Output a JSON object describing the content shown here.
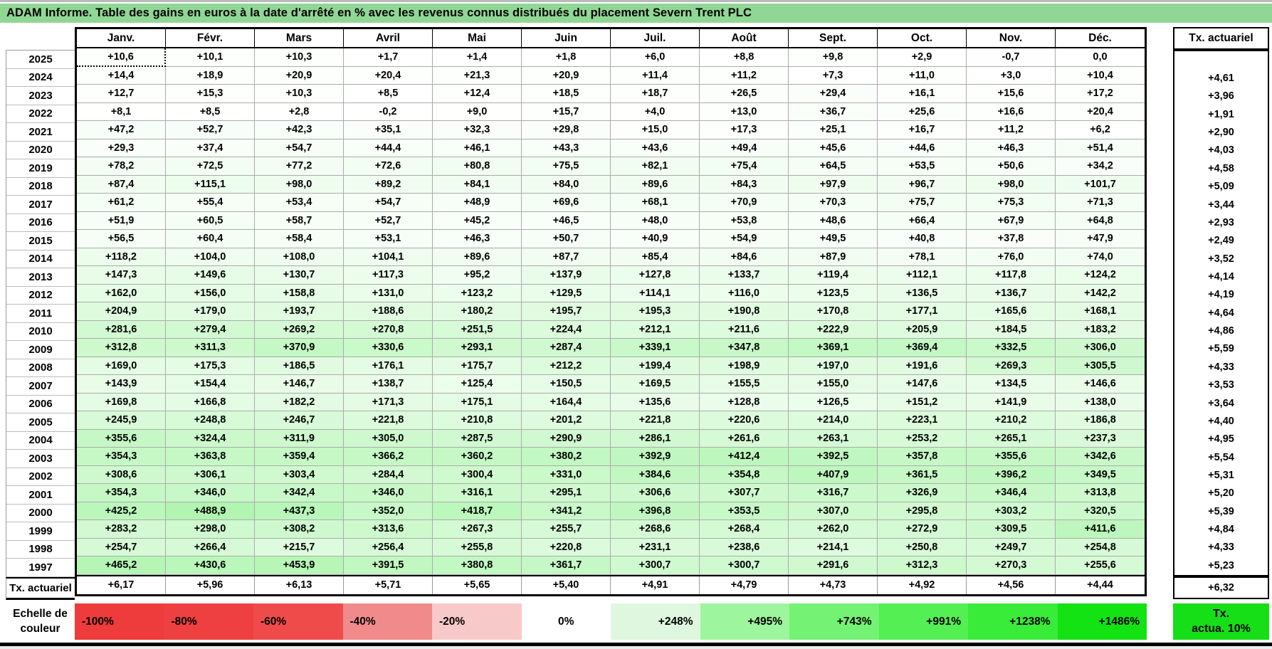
{
  "title": "ADAM Informe. Table des gains en euros à la date d'arrêté en % avec les revenus connus distribués du placement Severn Trent PLC",
  "columns": {
    "months": [
      "Janv.",
      "Févr.",
      "Mars",
      "Avril",
      "Mai",
      "Juin",
      "Juil.",
      "Août",
      "Sept.",
      "Oct.",
      "Nov.",
      "Déc."
    ],
    "tx_header": "Tx. actuariel"
  },
  "table": {
    "selected_cell": {
      "row_index": 0,
      "col_index": 0
    },
    "rows": [
      {
        "year": "2025",
        "values": [
          "+10,6",
          "+10,1",
          "+10,3",
          "+1,7",
          "+1,4",
          "+1,8",
          "+6,0",
          "+8,8",
          "+9,8",
          "+2,9",
          "-0,7",
          "0,0"
        ],
        "tx": ""
      },
      {
        "year": "2024",
        "values": [
          "+14,4",
          "+18,9",
          "+20,9",
          "+20,4",
          "+21,3",
          "+20,9",
          "+11,4",
          "+11,2",
          "+7,3",
          "+11,0",
          "+3,0",
          "+10,4"
        ],
        "tx": "+4,61"
      },
      {
        "year": "2023",
        "values": [
          "+12,7",
          "+15,3",
          "+10,3",
          "+8,5",
          "+12,4",
          "+18,5",
          "+18,7",
          "+26,5",
          "+29,4",
          "+16,1",
          "+15,6",
          "+17,2"
        ],
        "tx": "+3,96"
      },
      {
        "year": "2022",
        "values": [
          "+8,1",
          "+8,5",
          "+2,8",
          "-0,2",
          "+9,0",
          "+15,7",
          "+4,0",
          "+13,0",
          "+36,7",
          "+25,6",
          "+16,6",
          "+20,4"
        ],
        "tx": "+1,91"
      },
      {
        "year": "2021",
        "values": [
          "+47,2",
          "+52,7",
          "+42,3",
          "+35,1",
          "+32,3",
          "+29,8",
          "+15,0",
          "+17,3",
          "+25,1",
          "+16,7",
          "+11,2",
          "+6,2"
        ],
        "tx": "+2,90"
      },
      {
        "year": "2020",
        "values": [
          "+29,3",
          "+37,4",
          "+54,7",
          "+44,4",
          "+46,1",
          "+43,3",
          "+43,6",
          "+49,4",
          "+45,6",
          "+44,6",
          "+46,3",
          "+51,4"
        ],
        "tx": "+4,03"
      },
      {
        "year": "2019",
        "values": [
          "+78,2",
          "+72,5",
          "+77,2",
          "+72,6",
          "+80,8",
          "+75,5",
          "+82,1",
          "+75,4",
          "+64,5",
          "+53,5",
          "+50,6",
          "+34,2"
        ],
        "tx": "+4,58"
      },
      {
        "year": "2018",
        "values": [
          "+87,4",
          "+115,1",
          "+98,0",
          "+89,2",
          "+84,1",
          "+84,0",
          "+89,6",
          "+84,3",
          "+97,9",
          "+96,7",
          "+98,0",
          "+101,7"
        ],
        "tx": "+5,09"
      },
      {
        "year": "2017",
        "values": [
          "+61,2",
          "+55,4",
          "+53,4",
          "+54,7",
          "+48,9",
          "+69,6",
          "+68,1",
          "+70,9",
          "+70,3",
          "+75,7",
          "+75,3",
          "+71,3"
        ],
        "tx": "+3,44"
      },
      {
        "year": "2016",
        "values": [
          "+51,9",
          "+60,5",
          "+58,7",
          "+52,7",
          "+45,2",
          "+46,5",
          "+48,0",
          "+53,8",
          "+48,6",
          "+66,4",
          "+67,9",
          "+64,8"
        ],
        "tx": "+2,93"
      },
      {
        "year": "2015",
        "values": [
          "+56,5",
          "+60,4",
          "+58,4",
          "+53,1",
          "+46,3",
          "+50,7",
          "+40,9",
          "+54,9",
          "+49,5",
          "+40,8",
          "+37,8",
          "+47,9"
        ],
        "tx": "+2,49"
      },
      {
        "year": "2014",
        "values": [
          "+118,2",
          "+104,0",
          "+108,0",
          "+104,1",
          "+89,6",
          "+87,7",
          "+85,4",
          "+84,6",
          "+87,9",
          "+78,1",
          "+76,0",
          "+74,0"
        ],
        "tx": "+3,52"
      },
      {
        "year": "2013",
        "values": [
          "+147,3",
          "+149,6",
          "+130,7",
          "+117,3",
          "+95,2",
          "+137,9",
          "+127,8",
          "+133,7",
          "+119,4",
          "+112,1",
          "+117,8",
          "+124,2"
        ],
        "tx": "+4,14"
      },
      {
        "year": "2012",
        "values": [
          "+162,0",
          "+156,0",
          "+158,8",
          "+131,0",
          "+123,2",
          "+129,5",
          "+114,1",
          "+116,0",
          "+123,5",
          "+136,5",
          "+136,7",
          "+142,2"
        ],
        "tx": "+4,19"
      },
      {
        "year": "2011",
        "values": [
          "+204,9",
          "+179,0",
          "+193,7",
          "+188,6",
          "+180,2",
          "+195,7",
          "+195,3",
          "+190,8",
          "+170,8",
          "+177,1",
          "+165,6",
          "+168,1"
        ],
        "tx": "+4,64"
      },
      {
        "year": "2010",
        "values": [
          "+281,6",
          "+279,4",
          "+269,2",
          "+270,8",
          "+251,5",
          "+224,4",
          "+212,1",
          "+211,6",
          "+222,9",
          "+205,9",
          "+184,5",
          "+183,2"
        ],
        "tx": "+4,86"
      },
      {
        "year": "2009",
        "values": [
          "+312,8",
          "+311,3",
          "+370,9",
          "+330,6",
          "+293,1",
          "+287,4",
          "+339,1",
          "+347,8",
          "+369,1",
          "+369,4",
          "+332,5",
          "+306,0"
        ],
        "tx": "+5,59"
      },
      {
        "year": "2008",
        "values": [
          "+169,0",
          "+175,3",
          "+186,5",
          "+176,1",
          "+175,7",
          "+212,2",
          "+199,4",
          "+198,9",
          "+197,0",
          "+191,6",
          "+269,3",
          "+305,5"
        ],
        "tx": "+4,33"
      },
      {
        "year": "2007",
        "values": [
          "+143,9",
          "+154,4",
          "+146,7",
          "+138,7",
          "+125,4",
          "+150,5",
          "+169,5",
          "+155,5",
          "+155,0",
          "+147,6",
          "+134,5",
          "+146,6"
        ],
        "tx": "+3,53"
      },
      {
        "year": "2006",
        "values": [
          "+169,8",
          "+166,8",
          "+182,2",
          "+171,3",
          "+175,1",
          "+164,4",
          "+135,6",
          "+128,8",
          "+126,5",
          "+151,2",
          "+141,9",
          "+138,0"
        ],
        "tx": "+3,64"
      },
      {
        "year": "2005",
        "values": [
          "+245,9",
          "+248,8",
          "+246,7",
          "+221,8",
          "+210,8",
          "+201,2",
          "+221,8",
          "+220,6",
          "+214,0",
          "+223,1",
          "+210,2",
          "+186,8"
        ],
        "tx": "+4,40"
      },
      {
        "year": "2004",
        "values": [
          "+355,6",
          "+324,4",
          "+311,9",
          "+305,0",
          "+287,5",
          "+290,9",
          "+286,1",
          "+261,6",
          "+263,1",
          "+253,2",
          "+265,1",
          "+237,3"
        ],
        "tx": "+4,95"
      },
      {
        "year": "2003",
        "values": [
          "+354,3",
          "+363,8",
          "+359,4",
          "+366,2",
          "+360,2",
          "+380,2",
          "+392,9",
          "+412,4",
          "+392,5",
          "+357,8",
          "+355,6",
          "+342,6"
        ],
        "tx": "+5,54"
      },
      {
        "year": "2002",
        "values": [
          "+308,6",
          "+306,1",
          "+303,4",
          "+284,4",
          "+300,4",
          "+331,0",
          "+384,6",
          "+354,8",
          "+407,9",
          "+361,5",
          "+396,2",
          "+349,5"
        ],
        "tx": "+5,31"
      },
      {
        "year": "2001",
        "values": [
          "+354,3",
          "+346,0",
          "+342,4",
          "+346,0",
          "+316,1",
          "+295,1",
          "+306,6",
          "+307,7",
          "+316,7",
          "+326,9",
          "+346,4",
          "+313,8"
        ],
        "tx": "+5,20"
      },
      {
        "year": "2000",
        "values": [
          "+425,2",
          "+488,9",
          "+437,3",
          "+352,0",
          "+418,7",
          "+341,2",
          "+396,8",
          "+353,5",
          "+307,0",
          "+295,8",
          "+303,2",
          "+320,5"
        ],
        "tx": "+5,39"
      },
      {
        "year": "1999",
        "values": [
          "+283,2",
          "+298,0",
          "+308,2",
          "+313,6",
          "+267,3",
          "+255,7",
          "+268,6",
          "+268,4",
          "+262,0",
          "+272,9",
          "+309,5",
          "+411,6"
        ],
        "tx": "+4,84"
      },
      {
        "year": "1998",
        "values": [
          "+254,7",
          "+266,4",
          "+215,7",
          "+256,4",
          "+255,8",
          "+220,8",
          "+231,1",
          "+238,6",
          "+214,1",
          "+250,8",
          "+249,7",
          "+254,8"
        ],
        "tx": "+4,33"
      },
      {
        "year": "1997",
        "values": [
          "+465,2",
          "+430,6",
          "+453,9",
          "+391,5",
          "+380,8",
          "+361,7",
          "+300,7",
          "+300,7",
          "+291,6",
          "+312,3",
          "+270,3",
          "+255,6"
        ],
        "tx": "+5,23"
      }
    ],
    "tx_row": {
      "label": "Tx. actuariel",
      "values": [
        "+6,17",
        "+5,96",
        "+6,13",
        "+5,71",
        "+5,65",
        "+5,40",
        "+4,91",
        "+4,79",
        "+4,73",
        "+4,92",
        "+4,56",
        "+4,44"
      ],
      "tx": "+6,32"
    }
  },
  "color_scale": {
    "label_lines": [
      "Echelle de",
      "couleur"
    ],
    "cells": [
      {
        "label": "-100%",
        "color": "#EE3B3B",
        "align": "left"
      },
      {
        "label": "-80%",
        "color": "#EE4040",
        "align": "left"
      },
      {
        "label": "-60%",
        "color": "#F04B4B",
        "align": "left"
      },
      {
        "label": "-40%",
        "color": "#F18B8B",
        "align": "left"
      },
      {
        "label": "-20%",
        "color": "#F8C9C9",
        "align": "left"
      },
      {
        "label": "0%",
        "color": "#FFFFFF",
        "align": "center"
      },
      {
        "label": "+248%",
        "color": "#DFF7DE",
        "align": "right"
      },
      {
        "label": "+495%",
        "color": "#9DF59D",
        "align": "right"
      },
      {
        "label": "+743%",
        "color": "#74F274",
        "align": "right"
      },
      {
        "label": "+991%",
        "color": "#53EF53",
        "align": "right"
      },
      {
        "label": "+1238%",
        "color": "#39EC39",
        "align": "right"
      },
      {
        "label": "+1486%",
        "color": "#13E213",
        "align": "right"
      }
    ],
    "tx_box_lines": [
      "Tx.",
      "actua. 10%"
    ],
    "tx_box_color": "#17DF17"
  },
  "colors": {
    "title_bg": "#90D795",
    "positive_max": "#12E212",
    "negative_max": "#EE3B3B",
    "grid_line": "#ABABAB"
  }
}
